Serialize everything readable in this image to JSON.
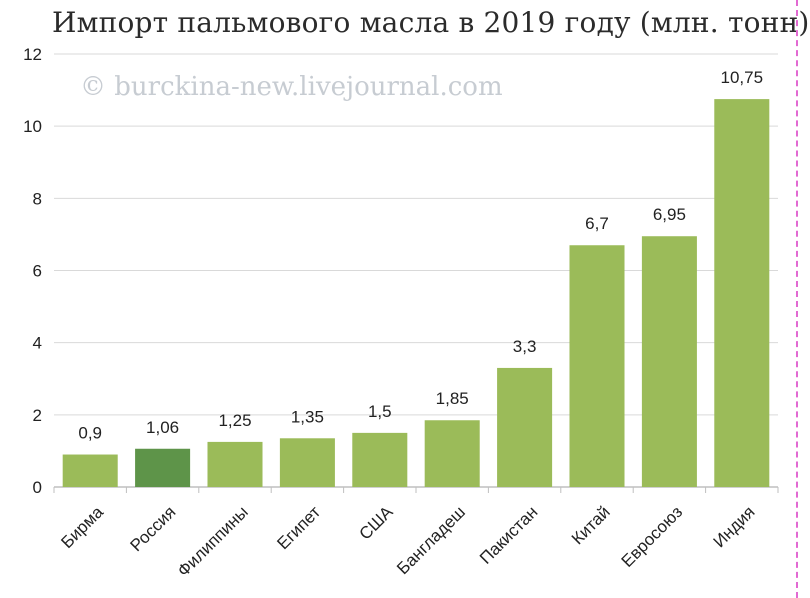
{
  "page": {
    "title": "Импорт пальмового масла в 2019 году (млн. тонн)",
    "watermark": "© burckina-new.livejournal.com"
  },
  "chart_data": {
    "type": "bar",
    "title": "Импорт пальмового масла в 2019 году (млн. тонн)",
    "xlabel": "",
    "ylabel": "",
    "ylim": [
      0,
      12
    ],
    "yticks": [
      0,
      2,
      4,
      6,
      8,
      10,
      12
    ],
    "grid": true,
    "categories": [
      "Бирма",
      "Россия",
      "Филиппины",
      "Египет",
      "США",
      "Бангладеш",
      "Пакистан",
      "Китай",
      "Евросоюз",
      "Индия"
    ],
    "values": [
      0.9,
      1.06,
      1.25,
      1.35,
      1.5,
      1.85,
      3.3,
      6.7,
      6.95,
      10.75
    ],
    "value_labels": [
      "0,9",
      "1,06",
      "1,25",
      "1,35",
      "1,5",
      "1,85",
      "3,3",
      "6,7",
      "6,95",
      "10,75"
    ],
    "colors": {
      "bar": "#9bbb59",
      "highlight": "#5e9449",
      "grid": "#d9d9d9",
      "axis": "#bfbfbf",
      "text": "#222222"
    },
    "highlight_category": "Россия"
  }
}
